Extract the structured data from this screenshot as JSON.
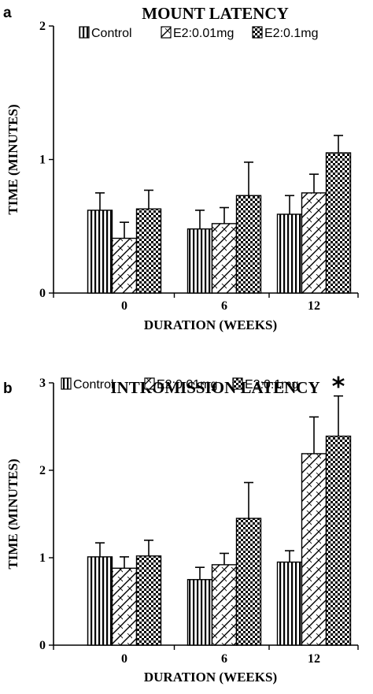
{
  "chart_data": [
    {
      "panel": "a",
      "type": "bar",
      "title": "MOUNT LATENCY",
      "xlabel": "DURATION (WEEKS)",
      "ylabel": "TIME (MINUTES)",
      "categories": [
        "0",
        "6",
        "12"
      ],
      "ylim": [
        0,
        2
      ],
      "yticks": [
        "0",
        "1",
        "2"
      ],
      "series": [
        {
          "name": "Control",
          "values": [
            0.62,
            0.48,
            0.59
          ],
          "errors": [
            0.13,
            0.14,
            0.14
          ],
          "pattern": "vertical-lines"
        },
        {
          "name": "E2:0.01mg",
          "values": [
            0.41,
            0.52,
            0.75
          ],
          "errors": [
            0.12,
            0.12,
            0.14
          ],
          "pattern": "diagonal-hatch"
        },
        {
          "name": "E2:0.1mg",
          "values": [
            0.63,
            0.73,
            1.05
          ],
          "errors": [
            0.14,
            0.25,
            0.13
          ],
          "pattern": "checker"
        }
      ],
      "annotations": [],
      "grid": false,
      "legend_position": "top"
    },
    {
      "panel": "b",
      "type": "bar",
      "title": "INTROMISSION LATENCY",
      "xlabel": "DURATION (WEEKS)",
      "ylabel": "TIME (MINUTES)",
      "categories": [
        "0",
        "6",
        "12"
      ],
      "ylim": [
        0,
        3
      ],
      "yticks": [
        "0",
        "1",
        "2",
        "3"
      ],
      "series": [
        {
          "name": "Control",
          "values": [
            1.01,
            0.75,
            0.95
          ],
          "errors": [
            0.16,
            0.14,
            0.13
          ],
          "pattern": "vertical-lines"
        },
        {
          "name": "E2:0.01mg",
          "values": [
            0.88,
            0.92,
            2.19
          ],
          "errors": [
            0.13,
            0.13,
            0.42
          ],
          "pattern": "diagonal-hatch"
        },
        {
          "name": "E2:0.1mg",
          "values": [
            1.02,
            1.45,
            2.39
          ],
          "errors": [
            0.18,
            0.41,
            0.46
          ],
          "pattern": "checker"
        }
      ],
      "annotations": [
        {
          "text": "*",
          "category": "12",
          "series": "E2:0.1mg"
        }
      ],
      "grid": false,
      "legend_position": "top"
    }
  ]
}
